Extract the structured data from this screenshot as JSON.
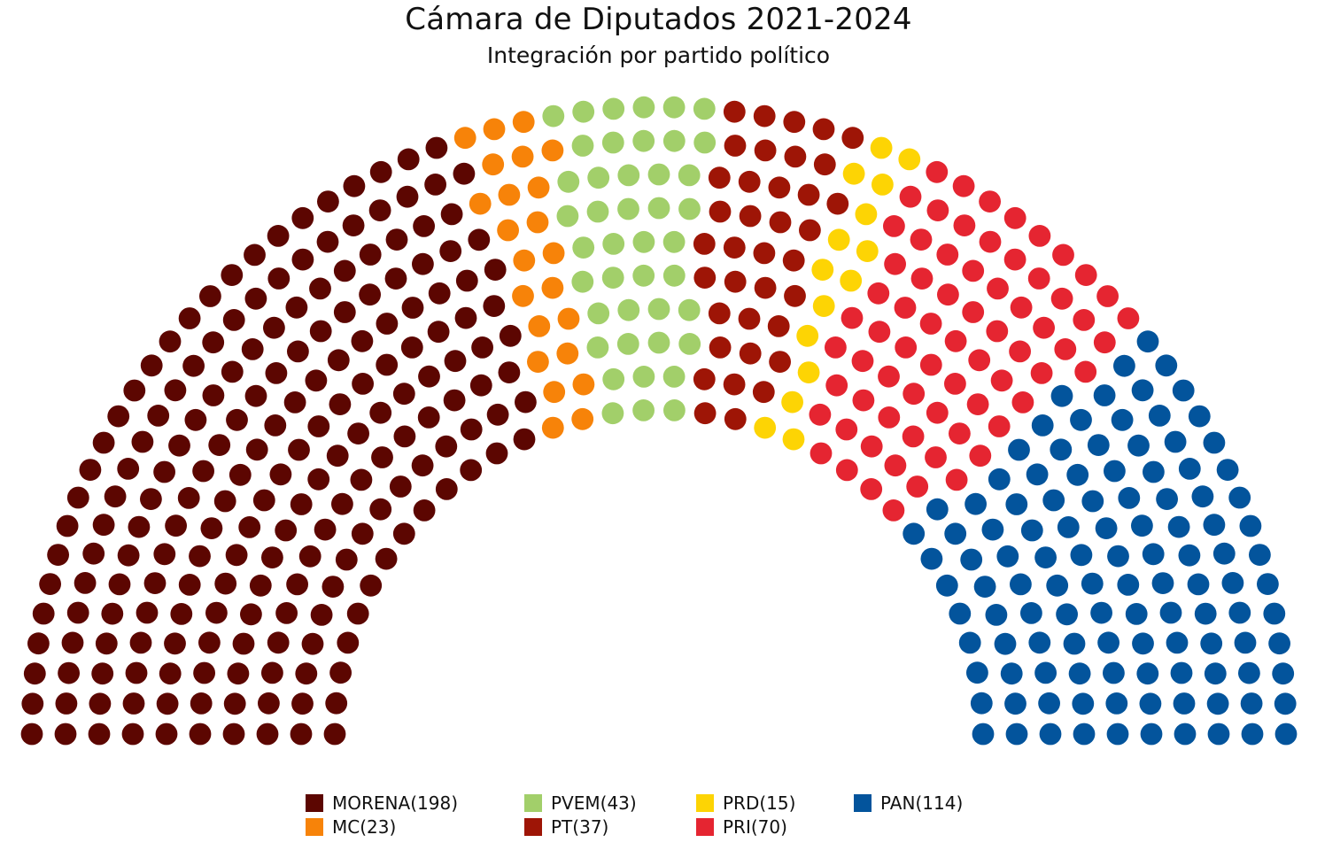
{
  "chart_data": {
    "type": "parliament",
    "title": "Cámara de Diputados 2021-2024",
    "subtitle": "Integración por partido político",
    "total_seats": 500,
    "series": [
      {
        "name": "MORENA",
        "value": 198,
        "color": "#5c0601"
      },
      {
        "name": "MC",
        "value": 23,
        "color": "#f78309"
      },
      {
        "name": "PVEM",
        "value": 43,
        "color": "#a2cf6a"
      },
      {
        "name": "PT",
        "value": 37,
        "color": "#9e1506"
      },
      {
        "name": "PRD",
        "value": 15,
        "color": "#fdd404"
      },
      {
        "name": "PRI",
        "value": 70,
        "color": "#e52531"
      },
      {
        "name": "PAN",
        "value": 114,
        "color": "#03549c"
      }
    ],
    "seat_order": [
      "MORENA",
      "MC",
      "PVEM",
      "PT",
      "PRD",
      "PRI",
      "PAN"
    ],
    "legend": {
      "placement": "bottom",
      "rows": [
        [
          "MORENA",
          "PVEM",
          "PRD",
          "PAN"
        ],
        [
          "MC",
          "PT",
          "PRI"
        ]
      ]
    }
  }
}
